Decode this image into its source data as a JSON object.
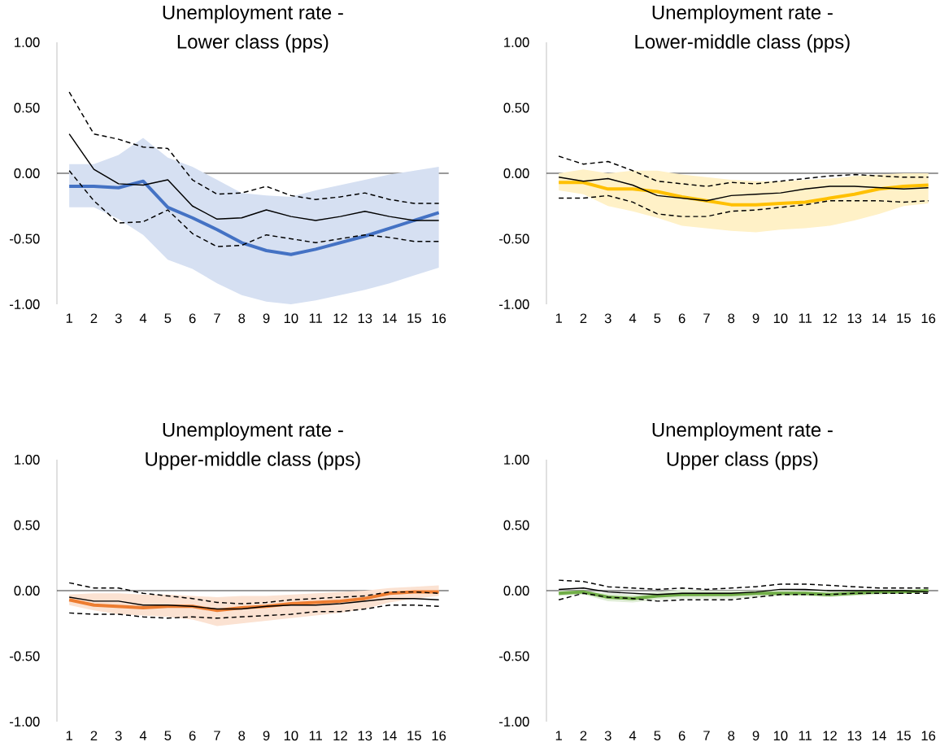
{
  "chart_data": [
    {
      "type": "line",
      "title": "Unemployment rate -",
      "subtitle": "Lower class (pps)",
      "categories": [
        "1",
        "2",
        "3",
        "4",
        "5",
        "6",
        "7",
        "8",
        "9",
        "10",
        "11",
        "12",
        "13",
        "14",
        "15",
        "16"
      ],
      "ylim": [
        -1,
        1
      ],
      "yticks": [
        {
          "value": -1,
          "label": "-1.00"
        },
        {
          "value": -0.5,
          "label": "-0.50"
        },
        {
          "value": 0,
          "label": "0.00"
        },
        {
          "value": 0.5,
          "label": "0.50"
        },
        {
          "value": 1,
          "label": "1.00"
        }
      ],
      "ref_lines": [
        {
          "axis": "y",
          "value": 0,
          "color": "#000000"
        }
      ],
      "series": [
        {
          "color": "#4472c4",
          "line_style": "solid",
          "values": [
            -0.1,
            -0.1,
            -0.11,
            -0.06,
            -0.26,
            -0.34,
            -0.43,
            -0.53,
            -0.59,
            -0.62,
            -0.58,
            -0.53,
            -0.48,
            -0.42,
            -0.36,
            -0.3
          ],
          "upper": [
            0.07,
            0.07,
            0.14,
            0.27,
            0.12,
            0.05,
            -0.05,
            -0.15,
            -0.17,
            -0.18,
            -0.13,
            -0.09,
            -0.05,
            -0.01,
            0.02,
            0.05
          ],
          "lower": [
            -0.26,
            -0.26,
            -0.35,
            -0.47,
            -0.66,
            -0.73,
            -0.84,
            -0.93,
            -0.98,
            -1.0,
            -0.97,
            -0.93,
            -0.89,
            -0.84,
            -0.78,
            -0.72
          ]
        },
        {
          "color": "#000000",
          "line_style": "solid",
          "values": [
            0.3,
            0.03,
            -0.08,
            -0.09,
            -0.05,
            -0.25,
            -0.35,
            -0.34,
            -0.28,
            -0.33,
            -0.36,
            -0.33,
            -0.29,
            -0.33,
            -0.36,
            -0.36
          ]
        },
        {
          "color": "#000000",
          "line_style": "dashed",
          "values": [
            0.62,
            0.3,
            0.26,
            0.2,
            0.19,
            -0.05,
            -0.16,
            -0.15,
            -0.1,
            -0.17,
            -0.2,
            -0.18,
            -0.15,
            -0.2,
            -0.23,
            -0.23
          ]
        },
        {
          "color": "#000000",
          "line_style": "dashed",
          "values": [
            0.02,
            -0.21,
            -0.38,
            -0.37,
            -0.28,
            -0.46,
            -0.56,
            -0.55,
            -0.47,
            -0.5,
            -0.53,
            -0.5,
            -0.47,
            -0.49,
            -0.52,
            -0.52
          ]
        }
      ]
    },
    {
      "type": "line",
      "title": "Unemployment rate -",
      "subtitle": "Lower-middle class (pps)",
      "categories": [
        "1",
        "2",
        "3",
        "4",
        "5",
        "6",
        "7",
        "8",
        "9",
        "10",
        "11",
        "12",
        "13",
        "14",
        "15",
        "16"
      ],
      "ylim": [
        -1,
        1
      ],
      "yticks": [
        {
          "value": -1,
          "label": "-1.00"
        },
        {
          "value": -0.5,
          "label": "-0.50"
        },
        {
          "value": 0,
          "label": "0.00"
        },
        {
          "value": 0.5,
          "label": "0.50"
        },
        {
          "value": 1,
          "label": "1.00"
        }
      ],
      "ref_lines": [
        {
          "axis": "y",
          "value": 0,
          "color": "#000000"
        }
      ],
      "series": [
        {
          "color": "#ffc000",
          "line_style": "solid",
          "values": [
            -0.07,
            -0.07,
            -0.12,
            -0.12,
            -0.14,
            -0.18,
            -0.21,
            -0.24,
            -0.24,
            -0.23,
            -0.22,
            -0.19,
            -0.16,
            -0.12,
            -0.1,
            -0.09
          ],
          "upper": [
            0.0,
            0.03,
            0.0,
            0.02,
            0.02,
            -0.01,
            -0.03,
            -0.05,
            -0.06,
            -0.06,
            -0.05,
            -0.04,
            -0.02,
            -0.01,
            0.0,
            0.0
          ],
          "lower": [
            -0.13,
            -0.16,
            -0.25,
            -0.29,
            -0.34,
            -0.4,
            -0.42,
            -0.44,
            -0.45,
            -0.43,
            -0.42,
            -0.4,
            -0.36,
            -0.31,
            -0.25,
            -0.23
          ]
        },
        {
          "color": "#000000",
          "line_style": "solid",
          "values": [
            -0.03,
            -0.06,
            -0.04,
            -0.09,
            -0.17,
            -0.19,
            -0.21,
            -0.17,
            -0.16,
            -0.15,
            -0.12,
            -0.1,
            -0.1,
            -0.11,
            -0.12,
            -0.11
          ]
        },
        {
          "color": "#000000",
          "line_style": "dashed",
          "values": [
            0.13,
            0.07,
            0.09,
            0.02,
            -0.06,
            -0.08,
            -0.1,
            -0.07,
            -0.08,
            -0.06,
            -0.04,
            -0.02,
            -0.01,
            -0.02,
            -0.03,
            -0.03
          ]
        },
        {
          "color": "#000000",
          "line_style": "dashed",
          "values": [
            -0.19,
            -0.19,
            -0.17,
            -0.22,
            -0.31,
            -0.33,
            -0.33,
            -0.29,
            -0.28,
            -0.26,
            -0.24,
            -0.21,
            -0.21,
            -0.21,
            -0.22,
            -0.21
          ]
        }
      ]
    },
    {
      "type": "line",
      "title": "Unemployment rate -",
      "subtitle": "Upper-middle class (pps)",
      "categories": [
        "1",
        "2",
        "3",
        "4",
        "5",
        "6",
        "7",
        "8",
        "9",
        "10",
        "11",
        "12",
        "13",
        "14",
        "15",
        "16"
      ],
      "ylim": [
        -1,
        1
      ],
      "yticks": [
        {
          "value": -1,
          "label": "-1.00"
        },
        {
          "value": -0.5,
          "label": "-0.50"
        },
        {
          "value": 0,
          "label": "0.00"
        },
        {
          "value": 0.5,
          "label": "0.50"
        },
        {
          "value": 1,
          "label": "1.00"
        }
      ],
      "ref_lines": [
        {
          "axis": "y",
          "value": 0,
          "color": "#000000"
        }
      ],
      "series": [
        {
          "color": "#ed7d31",
          "line_style": "solid",
          "values": [
            -0.07,
            -0.11,
            -0.12,
            -0.13,
            -0.12,
            -0.12,
            -0.15,
            -0.13,
            -0.12,
            -0.1,
            -0.09,
            -0.08,
            -0.06,
            -0.02,
            -0.01,
            -0.01
          ],
          "upper": [
            -0.03,
            -0.02,
            -0.02,
            -0.03,
            -0.03,
            -0.04,
            -0.05,
            -0.04,
            -0.04,
            -0.03,
            -0.02,
            -0.01,
            0.0,
            0.02,
            0.03,
            0.04
          ],
          "lower": [
            -0.11,
            -0.15,
            -0.18,
            -0.19,
            -0.2,
            -0.22,
            -0.27,
            -0.25,
            -0.23,
            -0.21,
            -0.19,
            -0.17,
            -0.14,
            -0.09,
            -0.06,
            -0.04
          ]
        },
        {
          "color": "#000000",
          "line_style": "solid",
          "values": [
            -0.05,
            -0.08,
            -0.08,
            -0.11,
            -0.11,
            -0.12,
            -0.14,
            -0.14,
            -0.12,
            -0.11,
            -0.11,
            -0.1,
            -0.08,
            -0.06,
            -0.06,
            -0.07
          ]
        },
        {
          "color": "#000000",
          "line_style": "dashed",
          "values": [
            0.06,
            0.02,
            0.02,
            -0.02,
            -0.04,
            -0.06,
            -0.09,
            -0.1,
            -0.09,
            -0.07,
            -0.06,
            -0.05,
            -0.04,
            -0.01,
            -0.01,
            -0.02
          ]
        },
        {
          "color": "#000000",
          "line_style": "dashed",
          "values": [
            -0.17,
            -0.18,
            -0.18,
            -0.2,
            -0.21,
            -0.2,
            -0.21,
            -0.2,
            -0.19,
            -0.18,
            -0.16,
            -0.16,
            -0.14,
            -0.11,
            -0.11,
            -0.12
          ]
        }
      ]
    },
    {
      "type": "line",
      "title": "Unemployment rate -",
      "subtitle": "Upper class (pps)",
      "categories": [
        "1",
        "2",
        "3",
        "4",
        "5",
        "6",
        "7",
        "8",
        "9",
        "10",
        "11",
        "12",
        "13",
        "14",
        "15",
        "16"
      ],
      "ylim": [
        -1,
        1
      ],
      "yticks": [
        {
          "value": -1,
          "label": "-1.00"
        },
        {
          "value": -0.5,
          "label": "-0.50"
        },
        {
          "value": 0,
          "label": "0.00"
        },
        {
          "value": 0.5,
          "label": "0.50"
        },
        {
          "value": 1,
          "label": "1.00"
        }
      ],
      "ref_lines": [
        {
          "axis": "y",
          "value": 0,
          "color": "#000000"
        }
      ],
      "series": [
        {
          "color": "#70ad47",
          "line_style": "solid",
          "values": [
            -0.02,
            -0.01,
            -0.05,
            -0.06,
            -0.04,
            -0.03,
            -0.03,
            -0.03,
            -0.02,
            -0.02,
            -0.02,
            -0.03,
            -0.02,
            -0.01,
            -0.01,
            0.0
          ],
          "upper": [
            0.0,
            0.0,
            -0.02,
            -0.03,
            -0.01,
            0.01,
            0.0,
            0.0,
            0.0,
            0.01,
            0.0,
            0.0,
            0.0,
            0.0,
            0.0,
            0.01
          ],
          "lower": [
            -0.04,
            -0.03,
            -0.08,
            -0.09,
            -0.07,
            -0.06,
            -0.06,
            -0.06,
            -0.05,
            -0.04,
            -0.04,
            -0.05,
            -0.04,
            -0.03,
            -0.02,
            -0.01
          ]
        },
        {
          "color": "#000000",
          "line_style": "solid",
          "values": [
            0.01,
            0.02,
            -0.01,
            -0.02,
            -0.03,
            -0.02,
            -0.02,
            -0.02,
            -0.01,
            0.01,
            0.01,
            0.0,
            0.0,
            0.0,
            0.0,
            -0.01
          ]
        },
        {
          "color": "#000000",
          "line_style": "dashed",
          "values": [
            0.08,
            0.07,
            0.03,
            0.02,
            0.01,
            0.02,
            0.01,
            0.02,
            0.03,
            0.05,
            0.05,
            0.04,
            0.03,
            0.02,
            0.02,
            0.02
          ]
        },
        {
          "color": "#000000",
          "line_style": "dashed",
          "values": [
            -0.07,
            -0.02,
            -0.05,
            -0.06,
            -0.08,
            -0.07,
            -0.07,
            -0.07,
            -0.05,
            -0.03,
            -0.03,
            -0.03,
            -0.02,
            -0.02,
            -0.02,
            -0.02
          ]
        }
      ]
    }
  ]
}
